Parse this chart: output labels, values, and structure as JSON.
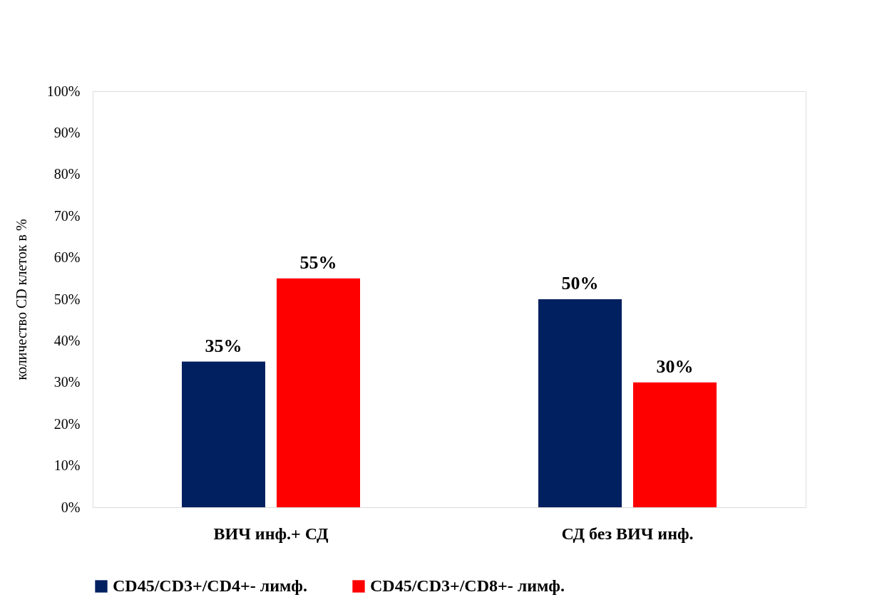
{
  "chart_data": {
    "type": "bar",
    "ylabel": "количество CD клеток в %",
    "categories": [
      "ВИЧ инф.+ СД",
      "СД без ВИЧ инф."
    ],
    "series": [
      {
        "name": "CD45/CD3+/CD4+- лимф.",
        "color": "#002060",
        "values": [
          35,
          50
        ],
        "value_labels": [
          "35%",
          "50%"
        ]
      },
      {
        "name": "CD45/CD3+/CD8+- лимф.",
        "color": "#ff0000",
        "values": [
          55,
          30
        ],
        "value_labels": [
          "55%",
          "30%"
        ]
      }
    ],
    "ylim": [
      0,
      100
    ],
    "yticks": [
      {
        "value": 0,
        "label": "0%"
      },
      {
        "value": 10,
        "label": "10%"
      },
      {
        "value": 20,
        "label": "20%"
      },
      {
        "value": 30,
        "label": "30%"
      },
      {
        "value": 40,
        "label": "40%"
      },
      {
        "value": 50,
        "label": "50%"
      },
      {
        "value": 60,
        "label": "60%"
      },
      {
        "value": 70,
        "label": "70%"
      },
      {
        "value": 80,
        "label": "80%"
      },
      {
        "value": 90,
        "label": "90%"
      },
      {
        "value": 100,
        "label": "100%"
      }
    ],
    "grid": false,
    "legend": "bottom"
  }
}
